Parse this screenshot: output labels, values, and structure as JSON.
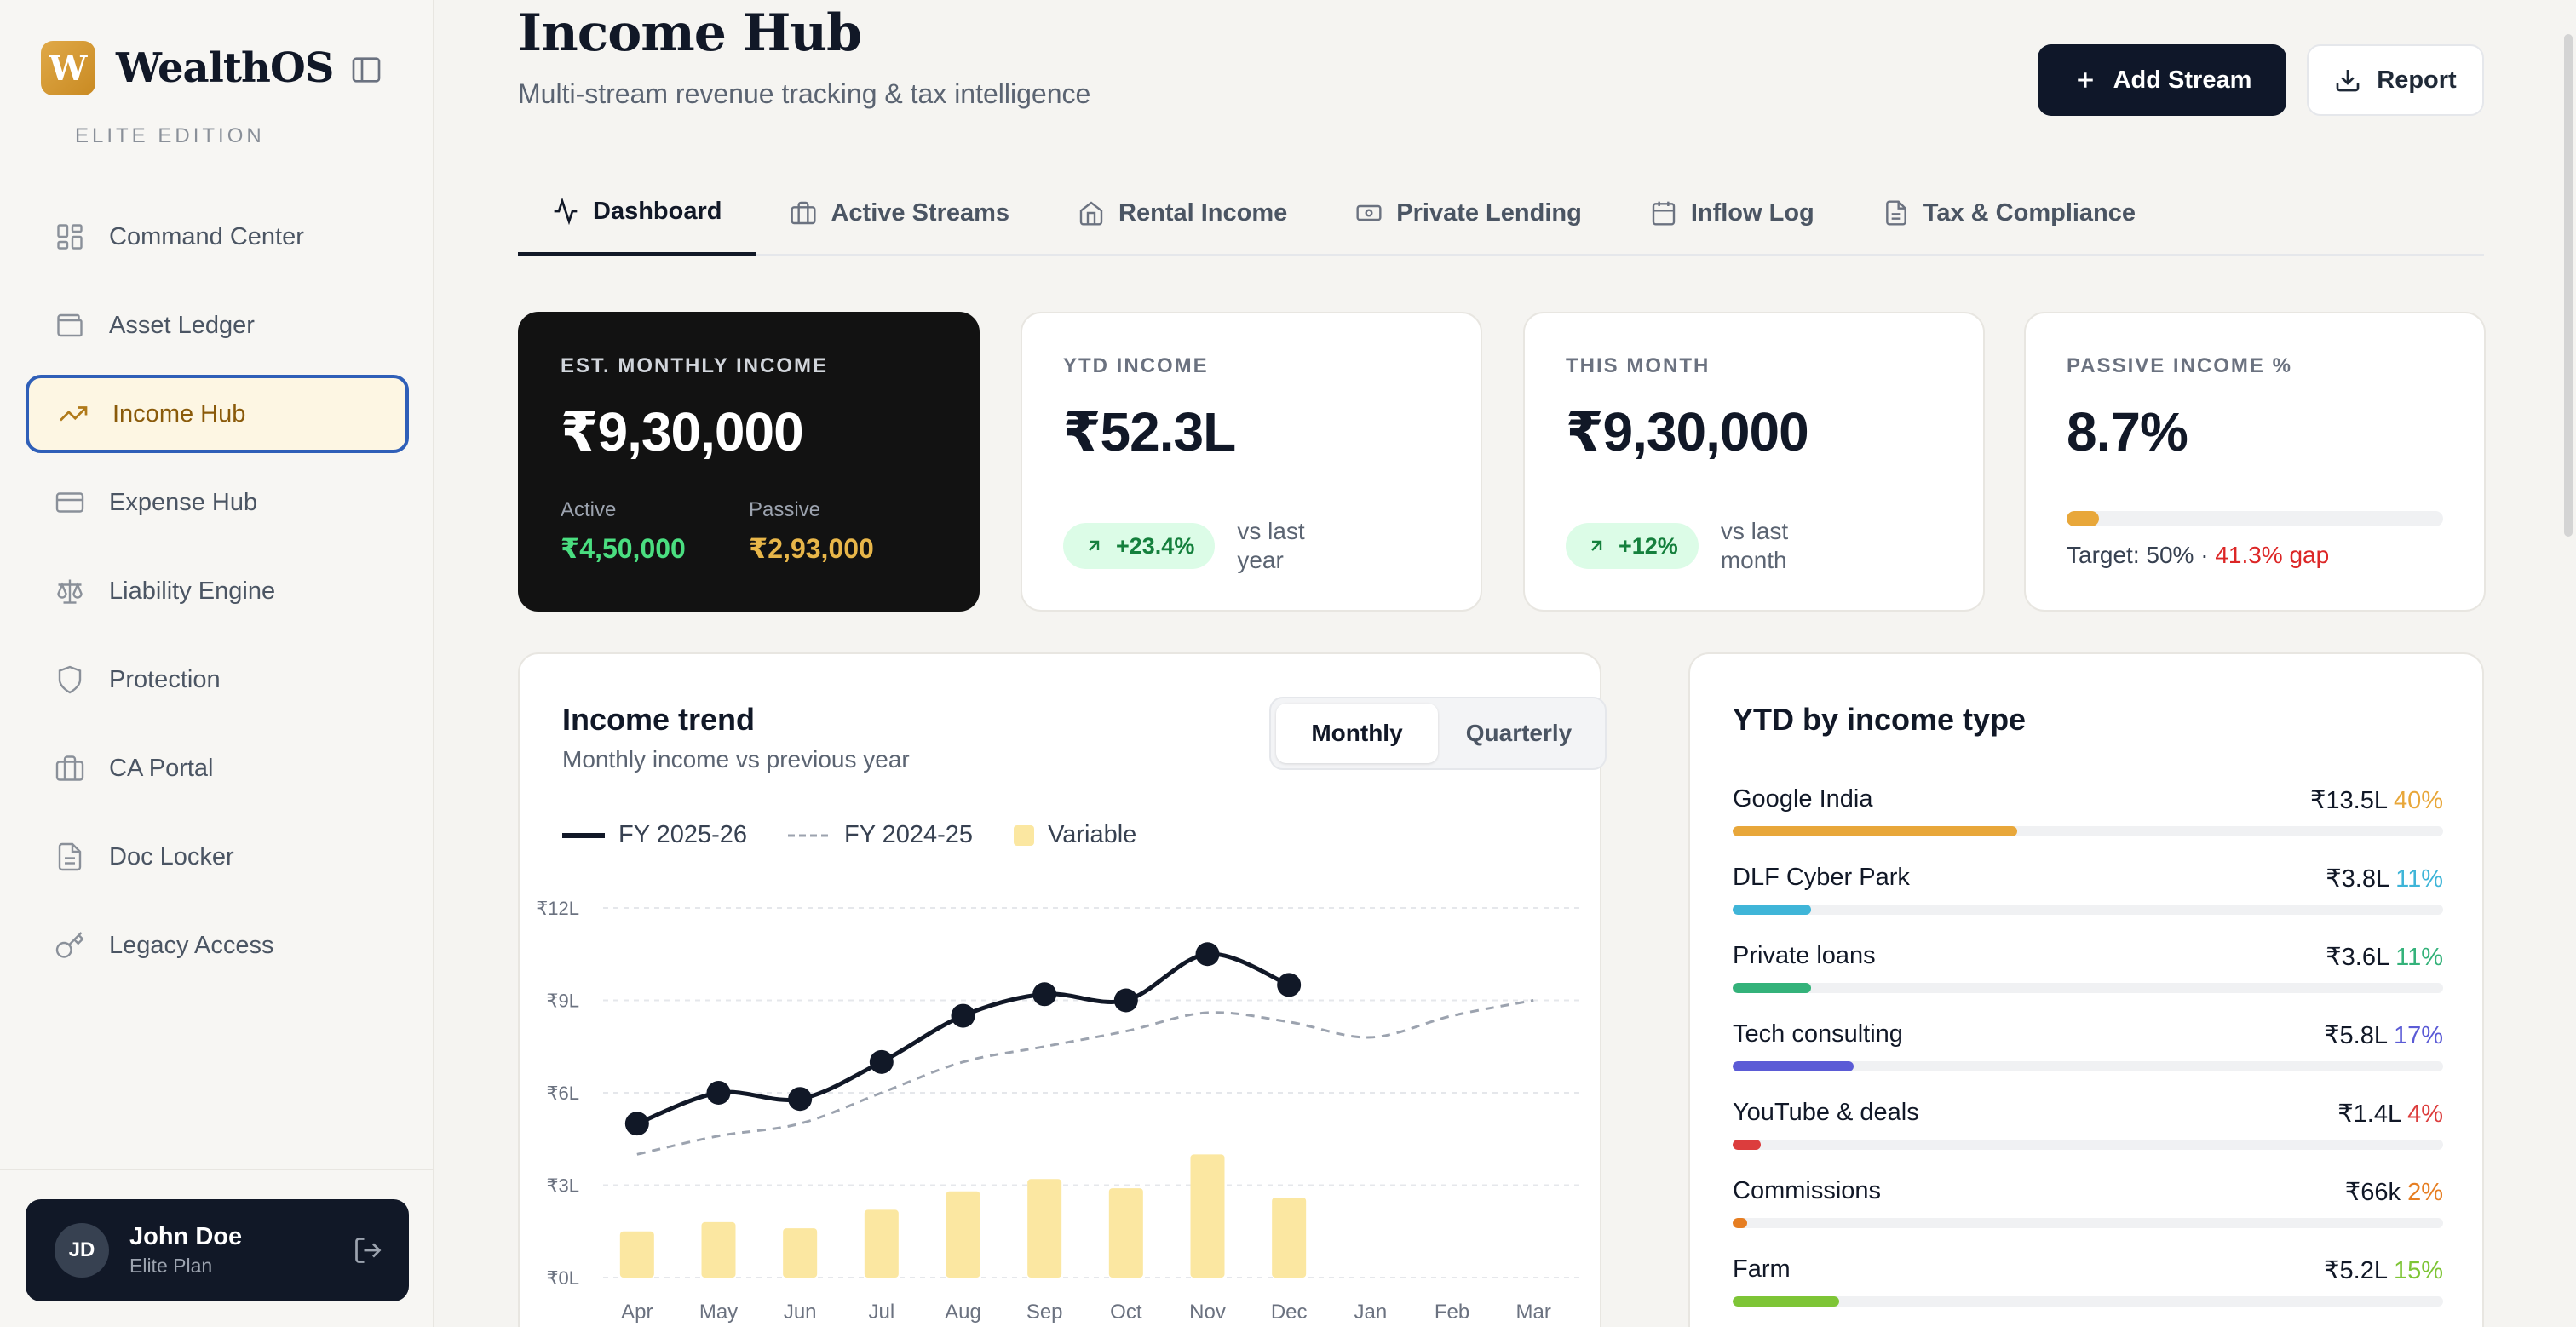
{
  "brand": {
    "name": "WealthOS",
    "logo_letter": "W",
    "edition": "ELITE EDITION"
  },
  "sidebar": {
    "items": [
      {
        "label": "Command Center",
        "icon": "grid-icon"
      },
      {
        "label": "Asset Ledger",
        "icon": "wallet-icon"
      },
      {
        "label": "Income Hub",
        "icon": "trending-up-icon",
        "active": true
      },
      {
        "label": "Expense Hub",
        "icon": "credit-card-icon"
      },
      {
        "label": "Liability Engine",
        "icon": "scale-icon"
      },
      {
        "label": "Protection",
        "icon": "shield-icon"
      },
      {
        "label": "CA Portal",
        "icon": "briefcase-icon"
      },
      {
        "label": "Doc Locker",
        "icon": "file-icon"
      },
      {
        "label": "Legacy Access",
        "icon": "key-icon"
      }
    ]
  },
  "user": {
    "initials": "JD",
    "name": "John Doe",
    "plan": "Elite Plan"
  },
  "header": {
    "title": "Income Hub",
    "subtitle": "Multi-stream revenue tracking & tax intelligence",
    "add_stream_label": "Add Stream",
    "report_label": "Report"
  },
  "tabs": [
    {
      "label": "Dashboard",
      "icon": "activity-icon",
      "active": true
    },
    {
      "label": "Active Streams",
      "icon": "briefcase-icon"
    },
    {
      "label": "Rental Income",
      "icon": "home-icon"
    },
    {
      "label": "Private Lending",
      "icon": "banknote-icon"
    },
    {
      "label": "Inflow Log",
      "icon": "calendar-icon"
    },
    {
      "label": "Tax & Compliance",
      "icon": "document-icon"
    }
  ],
  "kpis": {
    "monthly": {
      "label": "EST. MONTHLY INCOME",
      "value": "₹9,30,000",
      "active_label": "Active",
      "active_value": "₹4,50,000",
      "passive_label": "Passive",
      "passive_value": "₹2,93,000"
    },
    "ytd": {
      "label": "YTD INCOME",
      "value": "₹52.3L",
      "delta": "+23.4%",
      "note": "vs last year"
    },
    "this_month": {
      "label": "THIS MONTH",
      "value": "₹9,30,000",
      "delta": "+12%",
      "note": "vs last month"
    },
    "passive": {
      "label": "PASSIVE INCOME %",
      "value": "8.7%",
      "progress": 0.087,
      "target_text": "Target: 50% · ",
      "gap_text": "41.3% gap"
    }
  },
  "colors": {
    "active_green": "#4ade80",
    "passive_gold": "#e8b649",
    "accent": "#e8a73a",
    "navy": "#0f1729"
  },
  "income_trend": {
    "title": "Income trend",
    "subtitle": "Monthly income vs previous year",
    "toggle": {
      "monthly": "Monthly",
      "quarterly": "Quarterly",
      "selected": "Monthly"
    },
    "legend": {
      "current": "FY 2025-26",
      "previous": "FY 2024-25",
      "variable": "Variable"
    }
  },
  "chart_data": {
    "type": "line",
    "categories": [
      "Apr",
      "May",
      "Jun",
      "Jul",
      "Aug",
      "Sep",
      "Oct",
      "Nov",
      "Dec",
      "Jan",
      "Feb",
      "Mar"
    ],
    "y_ticks": [
      "₹0L",
      "₹3L",
      "₹6L",
      "₹9L",
      "₹12L"
    ],
    "ylim": [
      0,
      12
    ],
    "grid": true,
    "series": [
      {
        "name": "FY 2025-26",
        "kind": "line",
        "style": "solid-markers",
        "values": [
          5.0,
          6.0,
          5.8,
          7.0,
          8.5,
          9.2,
          9.0,
          10.5,
          9.5,
          null,
          null,
          null
        ]
      },
      {
        "name": "FY 2024-25",
        "kind": "line",
        "style": "dashed",
        "values": [
          4.0,
          4.6,
          5.0,
          6.0,
          7.0,
          7.5,
          8.0,
          8.6,
          8.3,
          7.8,
          8.5,
          9.0
        ]
      },
      {
        "name": "Variable",
        "kind": "bar",
        "values": [
          1.5,
          1.8,
          1.6,
          2.2,
          2.8,
          3.2,
          2.9,
          4.0,
          2.6,
          null,
          null,
          null
        ]
      }
    ]
  },
  "ytd_by_type": {
    "title": "YTD by income type",
    "rows": [
      {
        "name": "Google India",
        "amount": "₹13.5L",
        "pct": "40%",
        "frac": 0.4,
        "color": "#e8a73a"
      },
      {
        "name": "DLF Cyber Park",
        "amount": "₹3.8L",
        "pct": "11%",
        "frac": 0.11,
        "color": "#3fb5d8"
      },
      {
        "name": "Private loans",
        "amount": "₹3.6L",
        "pct": "11%",
        "frac": 0.11,
        "color": "#34b27a"
      },
      {
        "name": "Tech consulting",
        "amount": "₹5.8L",
        "pct": "17%",
        "frac": 0.17,
        "color": "#5b5bd6"
      },
      {
        "name": "YouTube & deals",
        "amount": "₹1.4L",
        "pct": "4%",
        "frac": 0.04,
        "color": "#dc3d3d"
      },
      {
        "name": "Commissions",
        "amount": "₹66k",
        "pct": "2%",
        "frac": 0.02,
        "color": "#e67e22"
      },
      {
        "name": "Farm",
        "amount": "₹5.2L",
        "pct": "15%",
        "frac": 0.15,
        "color": "#7ec536"
      }
    ]
  }
}
